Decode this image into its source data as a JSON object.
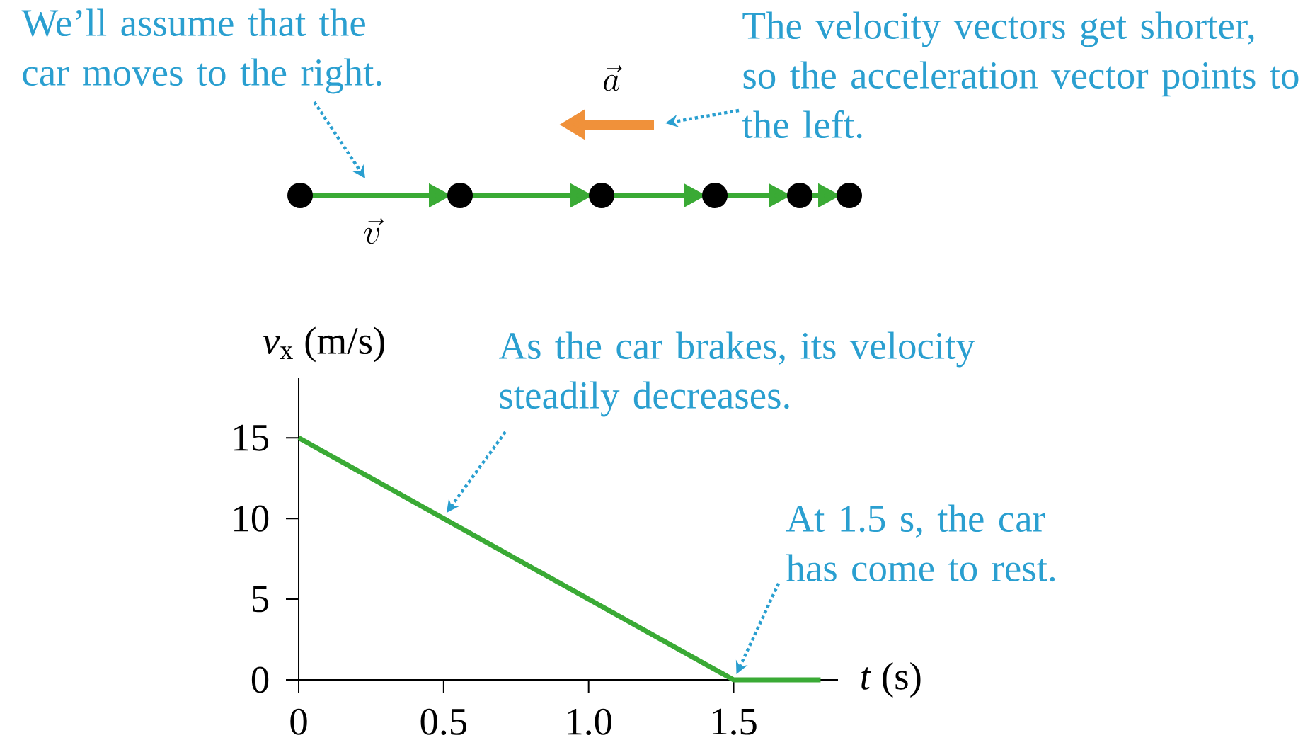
{
  "chart_data": {
    "type": "line",
    "xlabel": "*t* (s)",
    "ylabel": "*v*$_{x}$ (m/s)",
    "x": [
      0,
      1.5,
      1.8
    ],
    "series": [
      {
        "color": "#3aaa35",
        "values": [
          15,
          0,
          0
        ]
      }
    ],
    "xlim": [
      0,
      1.86
    ],
    "ylim": [
      0,
      18.7
    ],
    "xticks": [
      0,
      0.5,
      {
        "value": 1,
        "label": "1.0"
      },
      1.5
    ],
    "yticks": [
      0,
      5,
      10,
      15
    ],
    "marker": "none",
    "line_style": "solid",
    "grid": false,
    "legend": false,
    "annotations": [
      "We’ll assume that the car moves to the right.",
      "The velocity vectors get shorter, so the acceleration vector points to the left.",
      "\\vec{a}",
      "\\vec{v}",
      {
        "text": "As the car brakes, its velocity steadily decreases.",
        "x": 0.5,
        "y": 10
      },
      {
        "text": "At 1.5 s, the car has come to rest.",
        "x": 1.5,
        "y": 0
      }
    ]
  }
}
